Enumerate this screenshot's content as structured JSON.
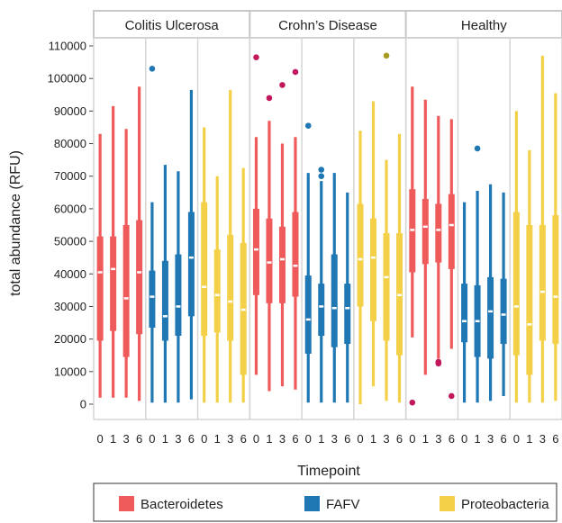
{
  "chart_data": {
    "type": "boxplot",
    "xlabel": "Timepoint",
    "ylabel": "total abundance (RFU)",
    "ylim": [
      0,
      110000
    ],
    "yticks": [
      0,
      10000,
      20000,
      30000,
      40000,
      50000,
      60000,
      70000,
      80000,
      90000,
      100000,
      110000
    ],
    "ytick_labels": [
      "0",
      "10000",
      "20000",
      "30000",
      "40000",
      "50000",
      "60000",
      "70000",
      "80000",
      "90000",
      "100000",
      "110000"
    ],
    "timepoints": [
      "0",
      "1",
      "3",
      "6"
    ],
    "colors": {
      "Bacteroidetes": "#ef5a5a",
      "FAFV": "#1f77b4",
      "Proteobacteria": "#f3d047",
      "median": "#ffffff",
      "outlier_magenta": "#c2185b",
      "outlier_olive": "#a79a23"
    },
    "legend": {
      "position": "bottom",
      "entries": [
        "Bacteroidetes",
        "FAFV",
        "Proteobacteria"
      ]
    },
    "facets": [
      {
        "label": "Colitis Ulcerosa",
        "groups": [
          {
            "series": "Bacteroidetes",
            "boxes": [
              {
                "t": "0",
                "min": 2000,
                "q1": 19500,
                "median": 40500,
                "q3": 51500,
                "max": 83000,
                "outliers": []
              },
              {
                "t": "1",
                "min": 2000,
                "q1": 22500,
                "median": 41500,
                "q3": 51500,
                "max": 91500,
                "outliers": []
              },
              {
                "t": "3",
                "min": 2000,
                "q1": 14500,
                "median": 32500,
                "q3": 55000,
                "max": 84500,
                "outliers": []
              },
              {
                "t": "6",
                "min": 1000,
                "q1": 21500,
                "median": 40500,
                "q3": 56500,
                "max": 97500,
                "outliers": []
              }
            ]
          },
          {
            "series": "FAFV",
            "boxes": [
              {
                "t": "0",
                "min": 500,
                "q1": 23500,
                "median": 33000,
                "q3": 41000,
                "max": 62000,
                "outliers": [
                  {
                    "v": 103000,
                    "c": "FAFV"
                  }
                ]
              },
              {
                "t": "1",
                "min": 500,
                "q1": 19500,
                "median": 27000,
                "q3": 44000,
                "max": 73500,
                "outliers": []
              },
              {
                "t": "3",
                "min": 500,
                "q1": 21000,
                "median": 30000,
                "q3": 46000,
                "max": 71500,
                "outliers": []
              },
              {
                "t": "6",
                "min": 1500,
                "q1": 27000,
                "median": 45000,
                "q3": 59000,
                "max": 96500,
                "outliers": []
              }
            ]
          },
          {
            "series": "Proteobacteria",
            "boxes": [
              {
                "t": "0",
                "min": 500,
                "q1": 21000,
                "median": 36000,
                "q3": 62000,
                "max": 85000,
                "outliers": []
              },
              {
                "t": "1",
                "min": 500,
                "q1": 22000,
                "median": 33500,
                "q3": 47500,
                "max": 70000,
                "outliers": []
              },
              {
                "t": "3",
                "min": 500,
                "q1": 19500,
                "median": 31500,
                "q3": 52000,
                "max": 96500,
                "outliers": []
              },
              {
                "t": "6",
                "min": 500,
                "q1": 9000,
                "median": 29000,
                "q3": 49500,
                "max": 72500,
                "outliers": []
              }
            ]
          }
        ]
      },
      {
        "label": "Crohn’s Disease",
        "groups": [
          {
            "series": "Bacteroidetes",
            "boxes": [
              {
                "t": "0",
                "min": 9000,
                "q1": 33500,
                "median": 47500,
                "q3": 60000,
                "max": 82000,
                "outliers": [
                  {
                    "v": 106500,
                    "c": "outlier_magenta"
                  }
                ]
              },
              {
                "t": "1",
                "min": 4000,
                "q1": 31000,
                "median": 43500,
                "q3": 57000,
                "max": 87000,
                "outliers": [
                  {
                    "v": 94000,
                    "c": "outlier_magenta"
                  }
                ]
              },
              {
                "t": "3",
                "min": 5500,
                "q1": 31000,
                "median": 44500,
                "q3": 54500,
                "max": 80000,
                "outliers": [
                  {
                    "v": 98000,
                    "c": "outlier_magenta"
                  }
                ]
              },
              {
                "t": "6",
                "min": 4500,
                "q1": 33000,
                "median": 42500,
                "q3": 59000,
                "max": 82000,
                "outliers": [
                  {
                    "v": 102000,
                    "c": "outlier_magenta"
                  }
                ]
              }
            ]
          },
          {
            "series": "FAFV",
            "boxes": [
              {
                "t": "0",
                "min": 500,
                "q1": 15500,
                "median": 26000,
                "q3": 39500,
                "max": 71000,
                "outliers": [
                  {
                    "v": 85500,
                    "c": "FAFV"
                  }
                ]
              },
              {
                "t": "1",
                "min": 500,
                "q1": 21000,
                "median": 30000,
                "q3": 37000,
                "max": 68500,
                "outliers": [
                  {
                    "v": 72000,
                    "c": "FAFV"
                  },
                  {
                    "v": 70000,
                    "c": "FAFV"
                  }
                ]
              },
              {
                "t": "3",
                "min": 500,
                "q1": 17500,
                "median": 29500,
                "q3": 46000,
                "max": 71000,
                "outliers": []
              },
              {
                "t": "6",
                "min": 500,
                "q1": 18500,
                "median": 29500,
                "q3": 37000,
                "max": 65000,
                "outliers": []
              }
            ]
          },
          {
            "series": "Proteobacteria",
            "boxes": [
              {
                "t": "0",
                "min": 0,
                "q1": 30000,
                "median": 44500,
                "q3": 61500,
                "max": 84000,
                "outliers": []
              },
              {
                "t": "1",
                "min": 5500,
                "q1": 25500,
                "median": 45000,
                "q3": 57000,
                "max": 93000,
                "outliers": []
              },
              {
                "t": "3",
                "min": 1000,
                "q1": 19500,
                "median": 39000,
                "q3": 52500,
                "max": 75000,
                "outliers": [
                  {
                    "v": 107000,
                    "c": "outlier_olive"
                  }
                ]
              },
              {
                "t": "6",
                "min": 500,
                "q1": 15000,
                "median": 33500,
                "q3": 52500,
                "max": 83000,
                "outliers": []
              }
            ]
          }
        ]
      },
      {
        "label": "Healthy",
        "groups": [
          {
            "series": "Bacteroidetes",
            "boxes": [
              {
                "t": "0",
                "min": 20500,
                "q1": 40500,
                "median": 53500,
                "q3": 66000,
                "max": 97500,
                "outliers": [
                  {
                    "v": 500,
                    "c": "outlier_magenta"
                  }
                ]
              },
              {
                "t": "1",
                "min": 9000,
                "q1": 43000,
                "median": 54500,
                "q3": 63000,
                "max": 93500,
                "outliers": []
              },
              {
                "t": "3",
                "min": 14000,
                "q1": 43500,
                "median": 53500,
                "q3": 61500,
                "max": 88500,
                "outliers": [
                  {
                    "v": 13000,
                    "c": "outlier_magenta"
                  },
                  {
                    "v": 12500,
                    "c": "outlier_magenta"
                  }
                ]
              },
              {
                "t": "6",
                "min": 17000,
                "q1": 41500,
                "median": 55000,
                "q3": 64500,
                "max": 87500,
                "outliers": [
                  {
                    "v": 2500,
                    "c": "outlier_magenta"
                  }
                ]
              }
            ]
          },
          {
            "series": "FAFV",
            "boxes": [
              {
                "t": "0",
                "min": 500,
                "q1": 19000,
                "median": 25500,
                "q3": 37000,
                "max": 62000,
                "outliers": []
              },
              {
                "t": "1",
                "min": 500,
                "q1": 14500,
                "median": 25500,
                "q3": 36500,
                "max": 65500,
                "outliers": [
                  {
                    "v": 78500,
                    "c": "FAFV"
                  }
                ]
              },
              {
                "t": "3",
                "min": 1000,
                "q1": 14000,
                "median": 28500,
                "q3": 39000,
                "max": 67500,
                "outliers": []
              },
              {
                "t": "6",
                "min": 2500,
                "q1": 18500,
                "median": 27500,
                "q3": 38500,
                "max": 65000,
                "outliers": []
              }
            ]
          },
          {
            "series": "Proteobacteria",
            "boxes": [
              {
                "t": "0",
                "min": 500,
                "q1": 15000,
                "median": 30000,
                "q3": 59000,
                "max": 90000,
                "outliers": []
              },
              {
                "t": "1",
                "min": 500,
                "q1": 9000,
                "median": 24500,
                "q3": 55000,
                "max": 78000,
                "outliers": []
              },
              {
                "t": "3",
                "min": 500,
                "q1": 19500,
                "median": 34500,
                "q3": 55000,
                "max": 107000,
                "outliers": []
              },
              {
                "t": "6",
                "min": 1000,
                "q1": 18500,
                "median": 33000,
                "q3": 58000,
                "max": 95500,
                "outliers": []
              }
            ]
          }
        ]
      }
    ]
  }
}
